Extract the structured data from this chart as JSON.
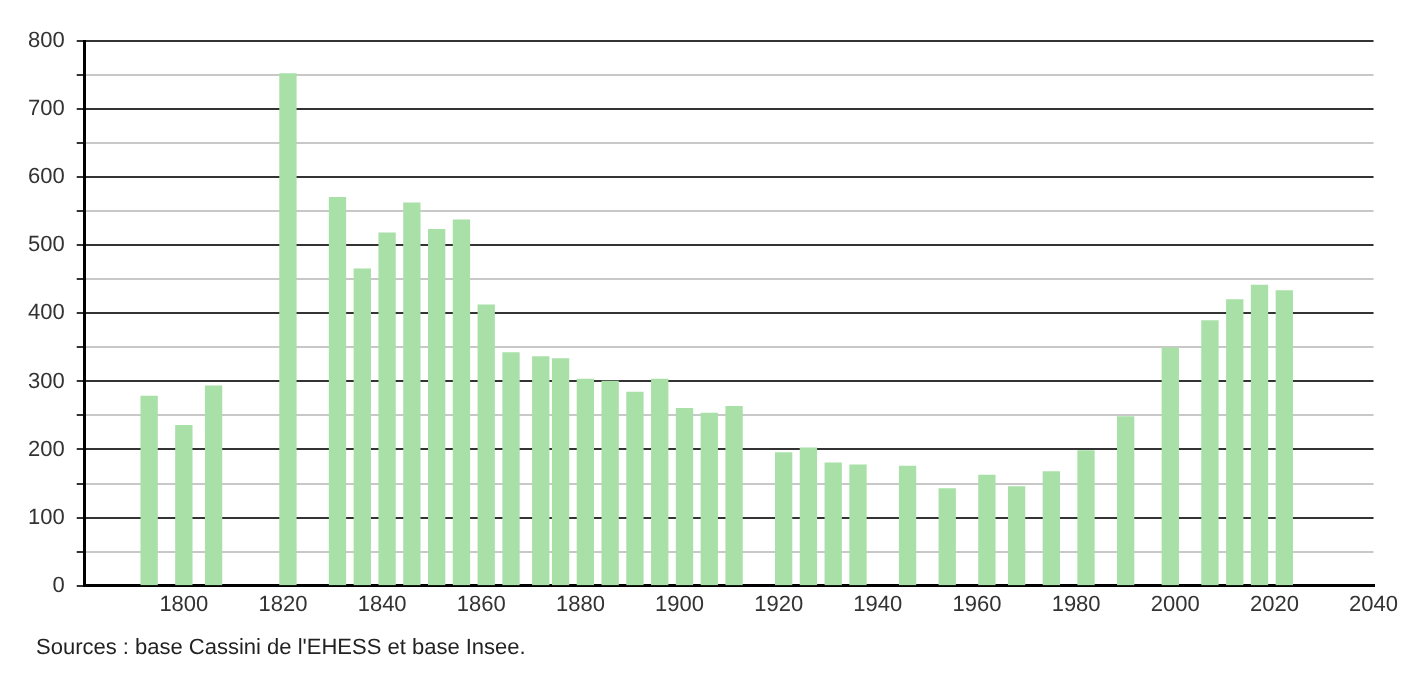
{
  "chart_data": {
    "type": "bar",
    "x": [
      1793,
      1800,
      1806,
      1821,
      1831,
      1836,
      1841,
      1846,
      1851,
      1856,
      1861,
      1866,
      1872,
      1876,
      1881,
      1886,
      1891,
      1896,
      1901,
      1906,
      1911,
      1921,
      1926,
      1931,
      1936,
      1946,
      1954,
      1962,
      1968,
      1975,
      1982,
      1990,
      1999,
      2007,
      2012,
      2017,
      2022
    ],
    "values": [
      278,
      235,
      293,
      752,
      570,
      465,
      518,
      562,
      523,
      537,
      412,
      342,
      336,
      333,
      303,
      300,
      284,
      303,
      260,
      253,
      263,
      195,
      202,
      180,
      177,
      175,
      142,
      162,
      145,
      167,
      198,
      248,
      349,
      389,
      420,
      441,
      433
    ],
    "color": "#a8e0a8",
    "xlim": [
      1780,
      2040
    ],
    "xticks": [
      1800,
      1820,
      1840,
      1860,
      1880,
      1900,
      1920,
      1940,
      1960,
      1980,
      2000,
      2020,
      2040
    ],
    "ylim": [
      0,
      800
    ],
    "yticks": [
      0,
      {
        "value": 50,
        "label": null
      },
      100,
      {
        "value": 150,
        "label": null
      },
      200,
      {
        "value": 250,
        "label": null
      },
      300,
      {
        "value": 350,
        "label": null
      },
      400,
      {
        "value": 450,
        "label": null
      },
      500,
      {
        "value": 550,
        "label": null
      },
      600,
      {
        "value": 650,
        "label": null
      },
      700,
      {
        "value": 750,
        "label": null
      },
      800
    ],
    "grid": "y",
    "legend": false,
    "annotations": [
      "Sources : base Cassini de l'EHESS et base Insee."
    ]
  }
}
